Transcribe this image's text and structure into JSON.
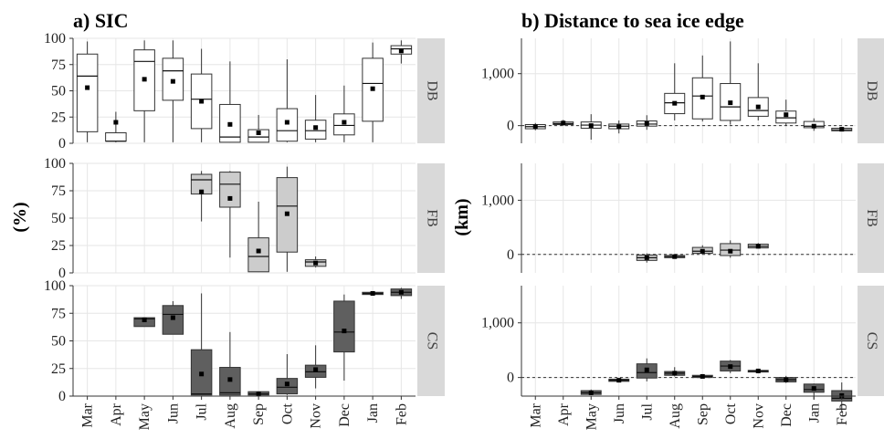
{
  "months": [
    "Mar",
    "Apr",
    "May",
    "Jun",
    "Jul",
    "Aug",
    "Sep",
    "Oct",
    "Nov",
    "Dec",
    "Jan",
    "Feb"
  ],
  "colors": {
    "DB": "#ffffff",
    "FB": "#cccccc",
    "CS": "#5f5f5f",
    "strip": "#d9d9d9",
    "grid": "#e6e6e6"
  },
  "chart_data": [
    {
      "type": "box",
      "title": "a) SIC",
      "ylabel": "(%)",
      "ylim": [
        0,
        100
      ],
      "yticks": [
        "0",
        "25",
        "50",
        "75",
        "100"
      ],
      "facets": [
        {
          "name": "DB",
          "boxes": [
            {
              "month": "Mar",
              "min": 1,
              "q1": 11,
              "median": 64,
              "q3": 85,
              "max": 97,
              "mean": 53
            },
            {
              "month": "Apr",
              "min": 1,
              "q1": 2,
              "median": 2,
              "q3": 10,
              "max": 30,
              "mean": 20
            },
            {
              "month": "May",
              "min": 1,
              "q1": 31,
              "median": 78,
              "q3": 89,
              "max": 98,
              "mean": 61
            },
            {
              "month": "Jun",
              "min": 1,
              "q1": 41,
              "median": 69,
              "q3": 81,
              "max": 98,
              "mean": 59
            },
            {
              "month": "Jul",
              "min": 1,
              "q1": 14,
              "median": 42,
              "q3": 66,
              "max": 90,
              "mean": 40
            },
            {
              "month": "Aug",
              "min": 1,
              "q1": 1,
              "median": 6,
              "q3": 37,
              "max": 78,
              "mean": 18
            },
            {
              "month": "Sep",
              "min": 1,
              "q1": 1,
              "median": 6,
              "q3": 13,
              "max": 27,
              "mean": 10
            },
            {
              "month": "Oct",
              "min": 1,
              "q1": 2,
              "median": 12,
              "q3": 33,
              "max": 80,
              "mean": 20
            },
            {
              "month": "Nov",
              "min": 1,
              "q1": 4,
              "median": 12,
              "q3": 22,
              "max": 46,
              "mean": 15
            },
            {
              "month": "Dec",
              "min": 1,
              "q1": 8,
              "median": 17,
              "q3": 28,
              "max": 55,
              "mean": 20
            },
            {
              "month": "Jan",
              "min": 1,
              "q1": 21,
              "median": 57,
              "q3": 81,
              "max": 96,
              "mean": 52
            },
            {
              "month": "Feb",
              "min": 76,
              "q1": 85,
              "median": 90,
              "q3": 93,
              "max": 98,
              "mean": 88
            }
          ]
        },
        {
          "name": "FB",
          "boxes": [
            {
              "month": "Jul",
              "min": 47,
              "q1": 72,
              "median": 85,
              "q3": 90,
              "max": 93,
              "mean": 74
            },
            {
              "month": "Aug",
              "min": 14,
              "q1": 60,
              "median": 81,
              "q3": 92,
              "max": 93,
              "mean": 68
            },
            {
              "month": "Sep",
              "min": 1,
              "q1": 1,
              "median": 15,
              "q3": 32,
              "max": 65,
              "mean": 20
            },
            {
              "month": "Oct",
              "min": 1,
              "q1": 19,
              "median": 61,
              "q3": 87,
              "max": 97,
              "mean": 54
            },
            {
              "month": "Nov",
              "min": 5,
              "q1": 6,
              "median": 10,
              "q3": 12,
              "max": 15,
              "mean": 9
            }
          ]
        },
        {
          "name": "CS",
          "boxes": [
            {
              "month": "May",
              "min": 63,
              "q1": 63,
              "median": 70,
              "q3": 71,
              "max": 71,
              "mean": 69
            },
            {
              "month": "Jun",
              "min": 56,
              "q1": 56,
              "median": 74,
              "q3": 82,
              "max": 86,
              "mean": 71
            },
            {
              "month": "Jul",
              "min": 1,
              "q1": 1,
              "median": 2,
              "q3": 42,
              "max": 93,
              "mean": 20
            },
            {
              "month": "Aug",
              "min": 1,
              "q1": 1,
              "median": 3,
              "q3": 26,
              "max": 58,
              "mean": 15
            },
            {
              "month": "Sep",
              "min": 1,
              "q1": 1,
              "median": 2,
              "q3": 4,
              "max": 4,
              "mean": 2
            },
            {
              "month": "Oct",
              "min": 1,
              "q1": 2,
              "median": 8,
              "q3": 16,
              "max": 38,
              "mean": 11
            },
            {
              "month": "Nov",
              "min": 7,
              "q1": 17,
              "median": 22,
              "q3": 28,
              "max": 46,
              "mean": 24
            },
            {
              "month": "Dec",
              "min": 14,
              "q1": 40,
              "median": 58,
              "q3": 86,
              "max": 92,
              "mean": 59
            },
            {
              "month": "Jan",
              "min": 91,
              "q1": 92,
              "median": 93,
              "q3": 94,
              "max": 95,
              "mean": 93
            },
            {
              "month": "Feb",
              "min": 88,
              "q1": 91,
              "median": 94,
              "q3": 97,
              "max": 98,
              "mean": 94
            }
          ]
        }
      ]
    },
    {
      "type": "box",
      "title": "b) Distance to sea ice edge",
      "ylabel": "(km)",
      "ylim": [
        -340,
        1680
      ],
      "yticks": [
        "0",
        "1,000"
      ],
      "zero_line": "dashed",
      "facets": [
        {
          "name": "DB",
          "boxes": [
            {
              "month": "Mar",
              "min": -90,
              "q1": -60,
              "median": -20,
              "q3": 20,
              "max": 50,
              "mean": -20
            },
            {
              "month": "Apr",
              "min": 0,
              "q1": 20,
              "median": 40,
              "q3": 70,
              "max": 110,
              "mean": 50
            },
            {
              "month": "May",
              "min": -270,
              "q1": -50,
              "median": 10,
              "q3": 70,
              "max": 220,
              "mean": 0
            },
            {
              "month": "Jun",
              "min": -150,
              "q1": -60,
              "median": -10,
              "q3": 30,
              "max": 100,
              "mean": -20
            },
            {
              "month": "Jul",
              "min": -80,
              "q1": -10,
              "median": 30,
              "q3": 90,
              "max": 200,
              "mean": 40
            },
            {
              "month": "Aug",
              "min": 100,
              "q1": 230,
              "median": 440,
              "q3": 620,
              "max": 1200,
              "mean": 430
            },
            {
              "month": "Sep",
              "min": 80,
              "q1": 130,
              "median": 570,
              "q3": 920,
              "max": 1350,
              "mean": 550
            },
            {
              "month": "Oct",
              "min": 20,
              "q1": 100,
              "median": 360,
              "q3": 810,
              "max": 1620,
              "mean": 440
            },
            {
              "month": "Nov",
              "min": 100,
              "q1": 180,
              "median": 290,
              "q3": 540,
              "max": 1200,
              "mean": 360
            },
            {
              "month": "Dec",
              "min": 0,
              "q1": 50,
              "median": 150,
              "q3": 280,
              "max": 500,
              "mean": 210
            },
            {
              "month": "Jan",
              "min": -100,
              "q1": -40,
              "median": -10,
              "q3": 80,
              "max": 140,
              "mean": -10
            },
            {
              "month": "Feb",
              "min": -110,
              "q1": -100,
              "median": -80,
              "q3": -50,
              "max": -30,
              "mean": -70
            }
          ]
        },
        {
          "name": "FB",
          "boxes": [
            {
              "month": "Jul",
              "min": -150,
              "q1": -110,
              "median": -60,
              "q3": -10,
              "max": 20,
              "mean": -60
            },
            {
              "month": "Aug",
              "min": -70,
              "q1": -60,
              "median": -40,
              "q3": -20,
              "max": 10,
              "mean": -40
            },
            {
              "month": "Sep",
              "min": 0,
              "q1": 20,
              "median": 60,
              "q3": 130,
              "max": 170,
              "mean": 60
            },
            {
              "month": "Oct",
              "min": -60,
              "q1": -20,
              "median": 80,
              "q3": 200,
              "max": 260,
              "mean": 60
            },
            {
              "month": "Nov",
              "min": 110,
              "q1": 120,
              "median": 150,
              "q3": 190,
              "max": 210,
              "mean": 150
            }
          ]
        },
        {
          "name": "CS",
          "boxes": [
            {
              "month": "May",
              "min": -320,
              "q1": -310,
              "median": -280,
              "q3": -240,
              "max": -220,
              "mean": -280
            },
            {
              "month": "Jun",
              "min": -80,
              "q1": -70,
              "median": -50,
              "q3": -30,
              "max": -20,
              "mean": -50
            },
            {
              "month": "Jul",
              "min": -70,
              "q1": -10,
              "median": 90,
              "q3": 250,
              "max": 350,
              "mean": 140
            },
            {
              "month": "Aug",
              "min": 20,
              "q1": 40,
              "median": 80,
              "q3": 110,
              "max": 190,
              "mean": 80
            },
            {
              "month": "Sep",
              "min": -10,
              "q1": 0,
              "median": 20,
              "q3": 40,
              "max": 50,
              "mean": 20
            },
            {
              "month": "Oct",
              "min": 80,
              "q1": 120,
              "median": 210,
              "q3": 300,
              "max": 320,
              "mean": 200
            },
            {
              "month": "Nov",
              "min": 90,
              "q1": 100,
              "median": 120,
              "q3": 130,
              "max": 140,
              "mean": 120
            },
            {
              "month": "Dec",
              "min": -100,
              "q1": -80,
              "median": -40,
              "q3": 0,
              "max": 30,
              "mean": -40
            },
            {
              "month": "Jan",
              "min": -400,
              "q1": -270,
              "median": -220,
              "q3": -120,
              "max": -110,
              "mean": -200
            },
            {
              "month": "Feb",
              "min": -620,
              "q1": -430,
              "median": -380,
              "q3": -240,
              "max": -90,
              "mean": -330
            }
          ]
        }
      ]
    }
  ]
}
